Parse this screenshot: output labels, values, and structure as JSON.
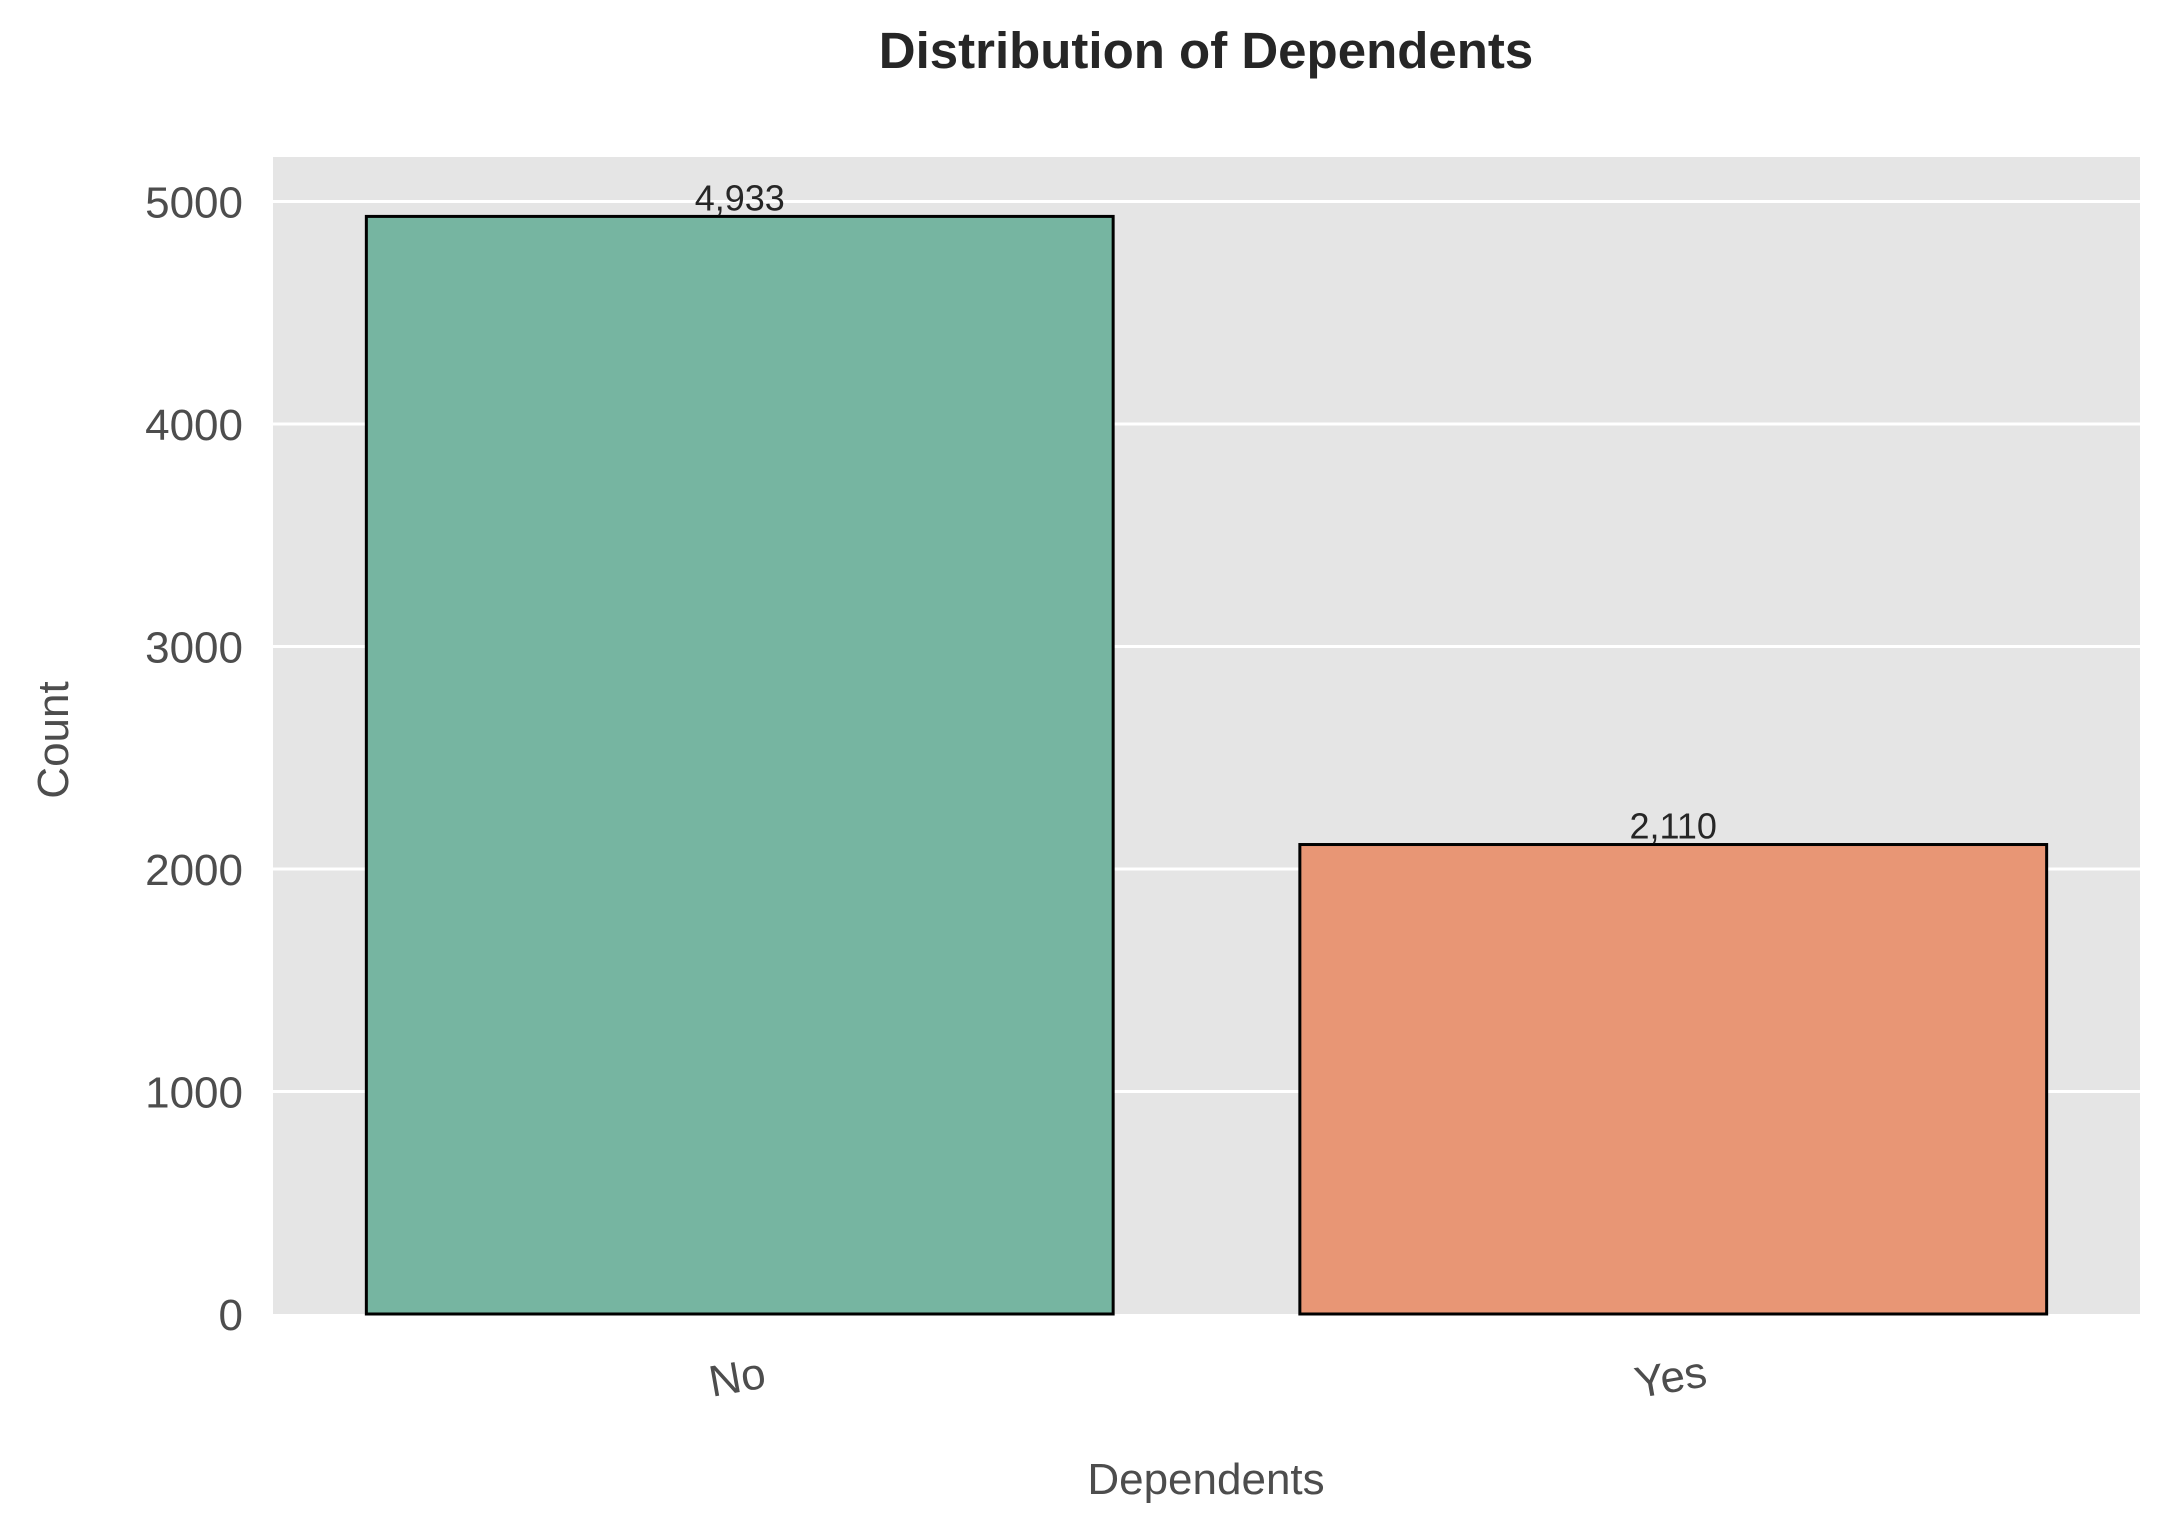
{
  "chart_data": {
    "type": "bar",
    "title": "Distribution of Dependents",
    "xlabel": "Dependents",
    "ylabel": "Count",
    "categories": [
      "No",
      "Yes"
    ],
    "values": [
      4933,
      2110
    ],
    "value_labels": [
      "4,933",
      "2,110"
    ],
    "ylim": [
      0,
      5200
    ],
    "yticks": [
      0,
      1000,
      2000,
      3000,
      4000,
      5000
    ],
    "ytick_labels": [
      "0",
      "1000",
      "2000",
      "3000",
      "4000",
      "5000"
    ],
    "grid": true,
    "legend": "none",
    "colors": {
      "background": "#e5e5e5",
      "grid": "#ffffff",
      "bar_edge": "#000000",
      "bars": [
        "#76b5a1",
        "#e89675"
      ]
    }
  }
}
